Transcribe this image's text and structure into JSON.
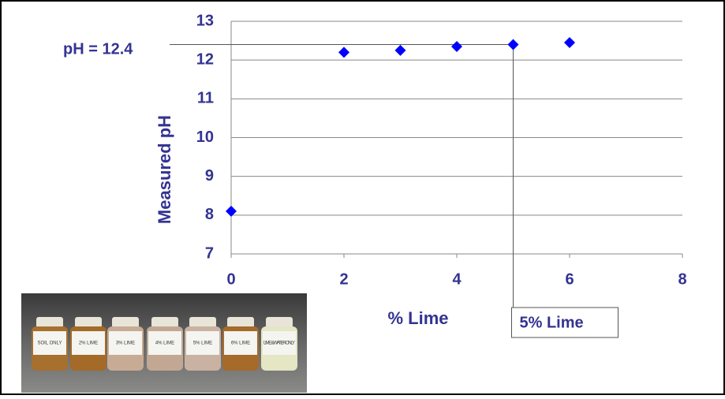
{
  "chart_data": {
    "type": "scatter",
    "x_label": "% Lime",
    "y_label": "Measured pH",
    "x": [
      0,
      2,
      3,
      4,
      5,
      6
    ],
    "values": [
      8.1,
      12.2,
      12.25,
      12.35,
      12.4,
      12.45
    ],
    "color": "#0000ff",
    "xlim": [
      0,
      8
    ],
    "xticks": [
      0,
      2,
      4,
      6,
      8
    ],
    "ylim": [
      7,
      13
    ],
    "yticks": [
      7,
      8,
      9,
      10,
      11,
      12,
      13
    ],
    "grid": true,
    "reference": {
      "x": 5,
      "y": 12.4,
      "x_label": "5% Lime",
      "y_label": "pH = 12.4"
    }
  },
  "photo": {
    "labels": [
      "SOIL ONLY",
      "2% LIME",
      "3% LIME",
      "4% LIME",
      "5% LIME",
      "6% LIME",
      "LIME & WATER ONLY"
    ]
  }
}
